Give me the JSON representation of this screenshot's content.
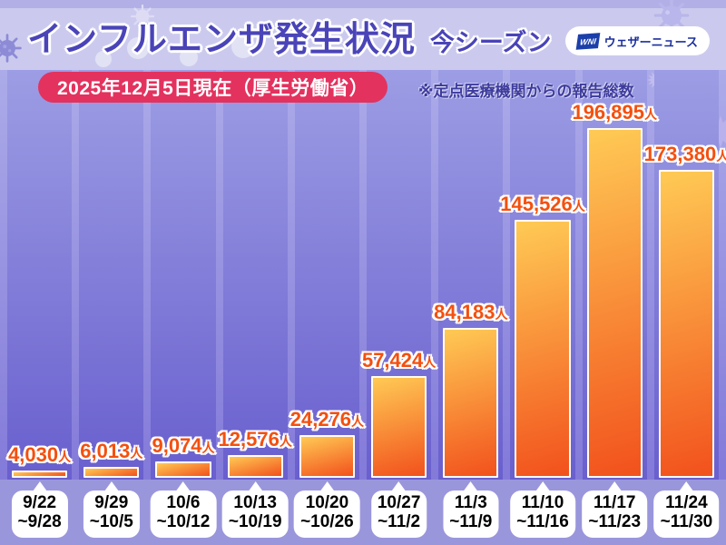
{
  "header": {
    "title": "インフルエンザ発生状況",
    "season_label": "今シーズン",
    "brand": {
      "mark": "WNI",
      "name": "ウェザーニュース"
    }
  },
  "subheader": {
    "date_badge": "2025年12月5日現在（厚生労働省）",
    "note": "※定点医療機関からの報告総数"
  },
  "colors": {
    "title_indigo": "#4a44b8",
    "date_badge_red": "#e3325e",
    "note_indigo": "#3d3b9c",
    "value_label_orange": "#f4500f",
    "bar_top": "#ffca55",
    "bar_bottom": "#f2511c",
    "plot_bg_top": "#acabe9",
    "plot_bg_bottom": "#837ad9",
    "footer_bg": "#9a96dc"
  },
  "chart_data": {
    "type": "bar",
    "title": "インフルエンザ発生状況 今シーズン",
    "subtitle": "2025年12月5日現在（厚生労働省） ※定点医療機関からの報告総数",
    "unit": "人",
    "categories": [
      "9/22~9/28",
      "9/29~10/5",
      "10/6~10/12",
      "10/13~10/19",
      "10/20~10/26",
      "10/27~11/2",
      "11/3~11/9",
      "11/10~11/16",
      "11/17~11/23",
      "11/24~11/30"
    ],
    "category_lines": [
      [
        "9/22",
        "~9/28"
      ],
      [
        "9/29",
        "~10/5"
      ],
      [
        "10/6",
        "~10/12"
      ],
      [
        "10/13",
        "~10/19"
      ],
      [
        "10/20",
        "~10/26"
      ],
      [
        "10/27",
        "~11/2"
      ],
      [
        "11/3",
        "~11/9"
      ],
      [
        "11/10",
        "~11/16"
      ],
      [
        "11/17",
        "~11/23"
      ],
      [
        "11/24",
        "~11/30"
      ]
    ],
    "values": [
      4030,
      6013,
      9074,
      12576,
      24276,
      57424,
      84183,
      145526,
      196895,
      173380
    ],
    "value_labels": [
      "4,030",
      "6,013",
      "9,074",
      "12,576",
      "24,276",
      "57,424",
      "84,183",
      "145,526",
      "196,895",
      "173,380"
    ],
    "ylim": [
      0,
      200000
    ],
    "grid": false,
    "legend": null,
    "x_axis_style": "speech-bubble-labels",
    "value_labels_position": "above-bar"
  }
}
